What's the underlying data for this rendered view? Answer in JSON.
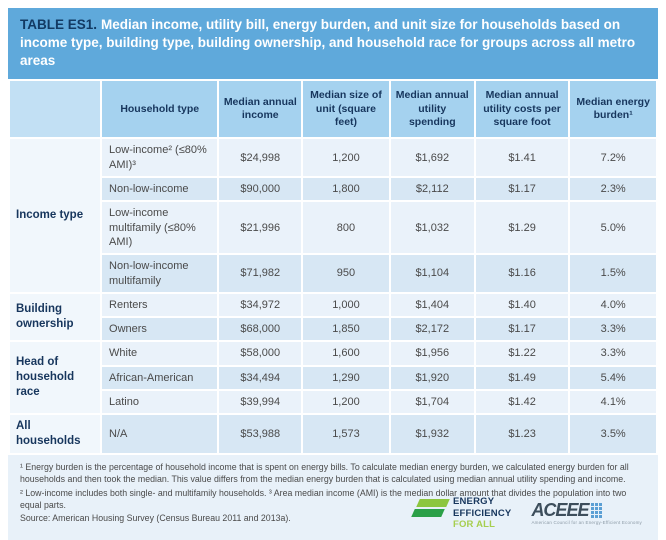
{
  "title": {
    "label": "TABLE ES1.",
    "caption": "Median income, utility bill, energy burden, and unit size for households based on income type, building type, building ownership, and household race for groups across all metro areas"
  },
  "table": {
    "columns": [
      "",
      "Household type",
      "Median annual income",
      "Median size of unit (square feet)",
      "Median annual utility spending",
      "Median annual utility costs per square foot",
      "Median energy burden¹"
    ],
    "groups": [
      {
        "label": "Income type",
        "rows": [
          [
            "Low-income² (≤80% AMI)³",
            "$24,998",
            "1,200",
            "$1,692",
            "$1.41",
            "7.2%"
          ],
          [
            "Non-low-income",
            "$90,000",
            "1,800",
            "$2,112",
            "$1.17",
            "2.3%"
          ],
          [
            "Low-income multifamily (≤80% AMI)",
            "$21,996",
            "800",
            "$1,032",
            "$1.29",
            "5.0%"
          ],
          [
            "Non-low-income multifamily",
            "$71,982",
            "950",
            "$1,104",
            "$1.16",
            "1.5%"
          ]
        ]
      },
      {
        "label": "Building ownership",
        "rows": [
          [
            "Renters",
            "$34,972",
            "1,000",
            "$1,404",
            "$1.40",
            "4.0%"
          ],
          [
            "Owners",
            "$68,000",
            "1,850",
            "$2,172",
            "$1.17",
            "3.3%"
          ]
        ]
      },
      {
        "label": "Head of household race",
        "rows": [
          [
            "White",
            "$58,000",
            "1,600",
            "$1,956",
            "$1.22",
            "3.3%"
          ],
          [
            "African-American",
            "$34,494",
            "1,290",
            "$1,920",
            "$1.49",
            "5.4%"
          ],
          [
            "Latino",
            "$39,994",
            "1,200",
            "$1,704",
            "$1.42",
            "4.1%"
          ]
        ]
      },
      {
        "label": "All households",
        "rows": [
          [
            "N/A",
            "$53,988",
            "1,573",
            "$1,932",
            "$1.23",
            "3.5%"
          ]
        ]
      }
    ]
  },
  "footnotes": [
    "¹ Energy burden is the percentage of household income that is spent on energy bills. To calculate median energy burden, we calculated energy burden for all households and then took the median. This value differs from the median energy burden that is calculated using median annual utility spending and income.",
    "² Low-income includes both single- and multifamily households. ³ Area median income (AMI) is the median dollar amount that divides the population into two equal parts."
  ],
  "source": "Source: American Housing Survey (Census Bureau 2011 and 2013a).",
  "logos": {
    "eefa": {
      "line1": "ENERGY",
      "line2": "EFFICIENCY",
      "line3": "FOR ALL"
    },
    "aceee": {
      "name": "ACEEE",
      "tagline": "American Council for an Energy-Efficient Economy"
    }
  },
  "colors": {
    "title_bar": "#5FA9DB",
    "navy": "#17365D",
    "header_bg": "#A5D2EF",
    "header_corner": "#C2E0F4",
    "row_light": "#EAF2FA",
    "row_dark": "#D7E7F4",
    "group_col": "#F1F7FC",
    "card_bg": "#E8F1F9",
    "eefa_light": "#8CC63F",
    "eefa_dark": "#2BA048",
    "eefa_forall": "#A6CE4E",
    "aceee": "#3D4E5C",
    "aceee_dots": "#5B9FD4"
  }
}
